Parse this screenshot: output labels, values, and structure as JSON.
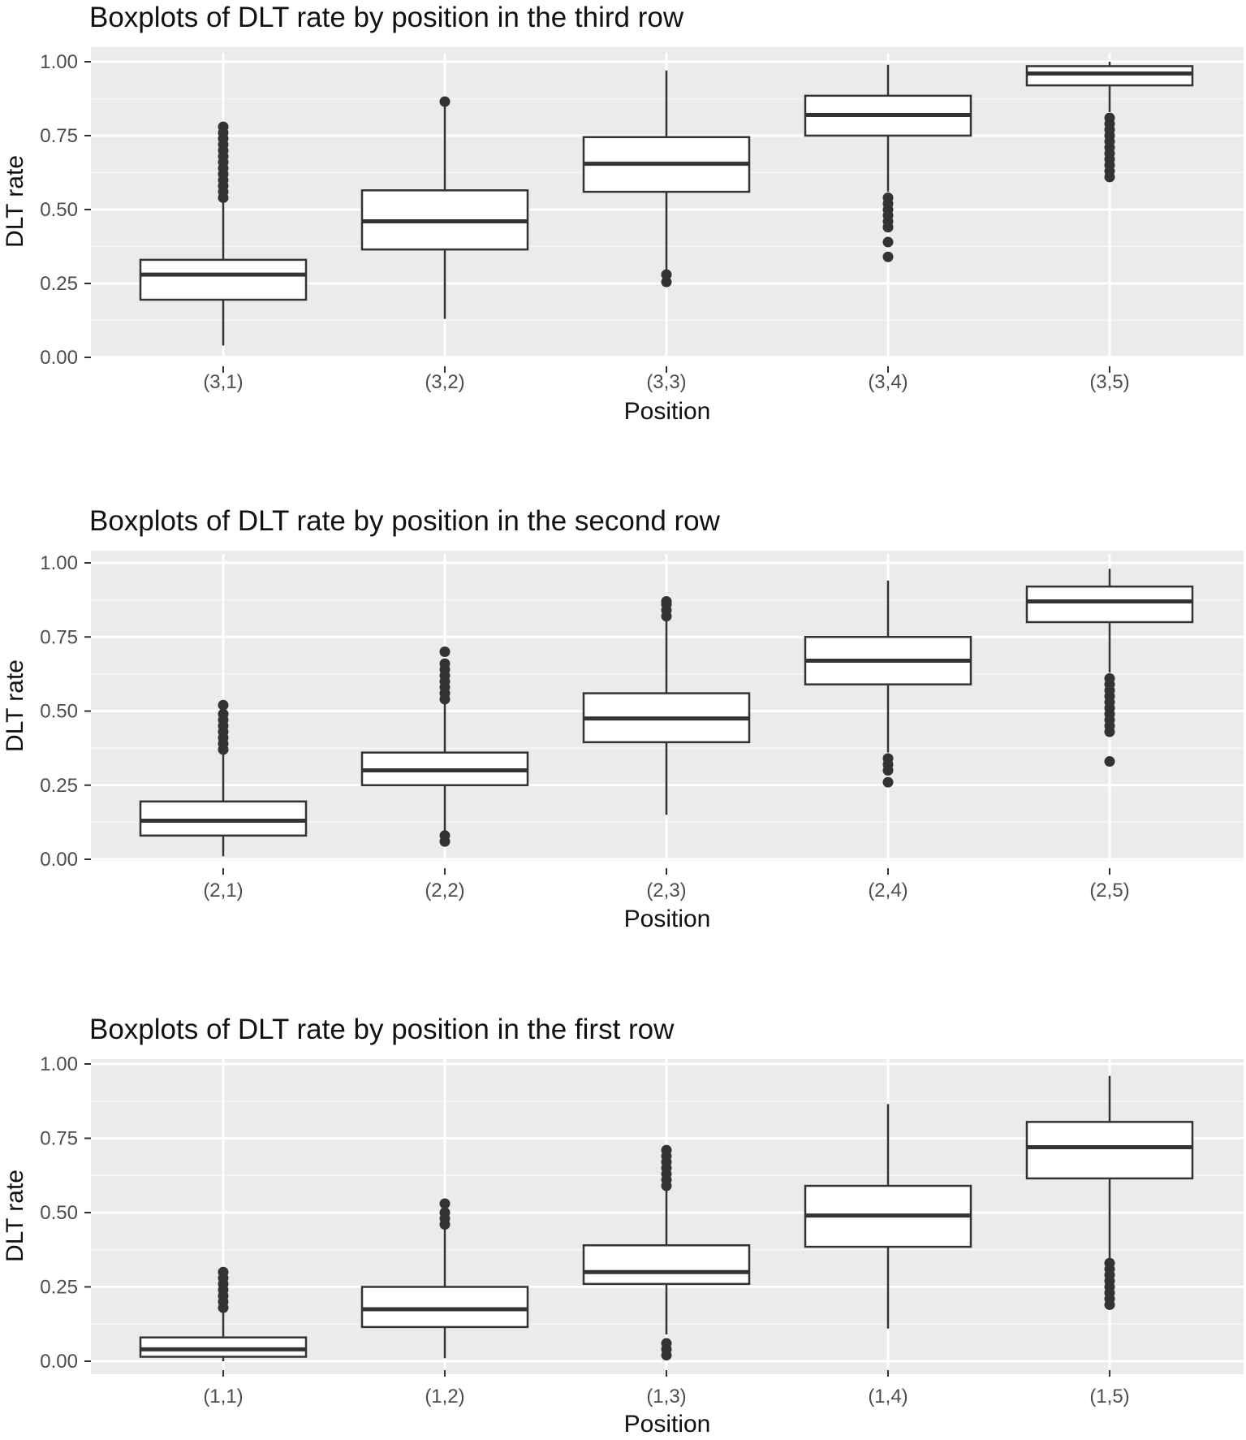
{
  "chart_data": [
    {
      "type": "boxplot",
      "title": "Boxplots of DLT rate by position in the third row",
      "xlabel": "Position",
      "ylabel": "DLT rate",
      "ylim": [
        0,
        1
      ],
      "yticks": [
        "0.00",
        "0.25",
        "0.50",
        "0.75",
        "1.00"
      ],
      "ytick_values": [
        0,
        0.25,
        0.5,
        0.75,
        1.0
      ],
      "grid": true,
      "background": "#ebebeb",
      "boxes": [
        {
          "label": "(3,1)",
          "whisker_low": 0.04,
          "q1": 0.195,
          "median": 0.28,
          "q3": 0.33,
          "whisker_high": 0.53,
          "outliers": [
            0.54,
            0.56,
            0.58,
            0.6,
            0.62,
            0.64,
            0.66,
            0.68,
            0.7,
            0.72,
            0.74,
            0.76,
            0.78
          ]
        },
        {
          "label": "(3,2)",
          "whisker_low": 0.13,
          "q1": 0.365,
          "median": 0.46,
          "q3": 0.565,
          "whisker_high": 0.865,
          "outliers": [
            0.865
          ]
        },
        {
          "label": "(3,3)",
          "whisker_low": 0.29,
          "q1": 0.56,
          "median": 0.655,
          "q3": 0.745,
          "whisker_high": 0.97,
          "outliers": [
            0.255,
            0.28
          ]
        },
        {
          "label": "(3,4)",
          "whisker_low": 0.56,
          "q1": 0.75,
          "median": 0.82,
          "q3": 0.885,
          "whisker_high": 0.99,
          "outliers": [
            0.34,
            0.39,
            0.44,
            0.46,
            0.48,
            0.5,
            0.52,
            0.54
          ]
        },
        {
          "label": "(3,5)",
          "whisker_low": 0.83,
          "q1": 0.92,
          "median": 0.96,
          "q3": 0.985,
          "whisker_high": 1.0,
          "outliers": [
            0.61,
            0.63,
            0.65,
            0.67,
            0.69,
            0.71,
            0.73,
            0.75,
            0.77,
            0.79,
            0.81
          ]
        }
      ]
    },
    {
      "type": "boxplot",
      "title": "Boxplots of DLT rate by position in the second row",
      "xlabel": "Position",
      "ylabel": "DLT rate",
      "ylim": [
        0,
        1
      ],
      "yticks": [
        "0.00",
        "0.25",
        "0.50",
        "0.75",
        "1.00"
      ],
      "ytick_values": [
        0,
        0.25,
        0.5,
        0.75,
        1.0
      ],
      "grid": true,
      "background": "#ebebeb",
      "boxes": [
        {
          "label": "(2,1)",
          "whisker_low": 0.01,
          "q1": 0.08,
          "median": 0.13,
          "q3": 0.195,
          "whisker_high": 0.36,
          "outliers": [
            0.37,
            0.39,
            0.41,
            0.43,
            0.45,
            0.47,
            0.49,
            0.52
          ]
        },
        {
          "label": "(2,2)",
          "whisker_low": 0.09,
          "q1": 0.25,
          "median": 0.3,
          "q3": 0.36,
          "whisker_high": 0.53,
          "outliers": [
            0.06,
            0.08,
            0.54,
            0.56,
            0.58,
            0.6,
            0.62,
            0.64,
            0.66,
            0.7
          ]
        },
        {
          "label": "(2,3)",
          "whisker_low": 0.15,
          "q1": 0.395,
          "median": 0.475,
          "q3": 0.56,
          "whisker_high": 0.81,
          "outliers": [
            0.82,
            0.84,
            0.86,
            0.87
          ]
        },
        {
          "label": "(2,4)",
          "whisker_low": 0.36,
          "q1": 0.59,
          "median": 0.67,
          "q3": 0.75,
          "whisker_high": 0.94,
          "outliers": [
            0.26,
            0.3,
            0.32,
            0.34
          ]
        },
        {
          "label": "(2,5)",
          "whisker_low": 0.63,
          "q1": 0.8,
          "median": 0.87,
          "q3": 0.92,
          "whisker_high": 0.98,
          "outliers": [
            0.33,
            0.43,
            0.45,
            0.47,
            0.49,
            0.51,
            0.53,
            0.55,
            0.57,
            0.59,
            0.61
          ]
        }
      ]
    },
    {
      "type": "boxplot",
      "title": "Boxplots of DLT rate by position in the first row",
      "xlabel": "Position",
      "ylabel": "DLT rate",
      "ylim": [
        0,
        1
      ],
      "yticks": [
        "0.00",
        "0.25",
        "0.50",
        "0.75",
        "1.00"
      ],
      "ytick_values": [
        0,
        0.25,
        0.5,
        0.75,
        1.0
      ],
      "grid": true,
      "background": "#ebebeb",
      "boxes": [
        {
          "label": "(1,1)",
          "whisker_low": 0.0,
          "q1": 0.015,
          "median": 0.04,
          "q3": 0.08,
          "whisker_high": 0.17,
          "outliers": [
            0.18,
            0.2,
            0.22,
            0.24,
            0.26,
            0.28,
            0.3
          ]
        },
        {
          "label": "(1,2)",
          "whisker_low": 0.01,
          "q1": 0.115,
          "median": 0.175,
          "q3": 0.25,
          "whisker_high": 0.45,
          "outliers": [
            0.46,
            0.48,
            0.5,
            0.53
          ]
        },
        {
          "label": "(1,3)",
          "whisker_low": 0.09,
          "q1": 0.26,
          "median": 0.3,
          "q3": 0.39,
          "whisker_high": 0.58,
          "outliers": [
            0.02,
            0.04,
            0.06,
            0.59,
            0.61,
            0.63,
            0.65,
            0.67,
            0.69,
            0.71
          ]
        },
        {
          "label": "(1,4)",
          "whisker_low": 0.11,
          "q1": 0.385,
          "median": 0.49,
          "q3": 0.59,
          "whisker_high": 0.865,
          "outliers": []
        },
        {
          "label": "(1,5)",
          "whisker_low": 0.34,
          "q1": 0.615,
          "median": 0.72,
          "q3": 0.805,
          "whisker_high": 0.96,
          "outliers": [
            0.19,
            0.21,
            0.23,
            0.25,
            0.27,
            0.29,
            0.31,
            0.33
          ]
        }
      ]
    }
  ]
}
